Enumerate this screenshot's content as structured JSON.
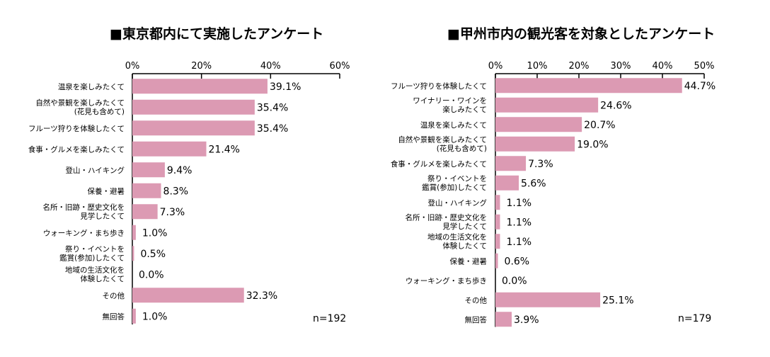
{
  "colors": {
    "bar": "#dc9ab3",
    "axis": "#000000",
    "text": "#000000"
  },
  "chart_data": [
    {
      "type": "bar",
      "orientation": "horizontal",
      "title": "■東京都内にて実施したアンケート",
      "categories": [
        "温泉を楽しみたくて",
        "自然や景観を楽しみたくて\n(花見も含めて)",
        "フルーツ狩りを体験したくて",
        "食事・グルメを楽しみたくて",
        "登山・ハイキング",
        "保養・避暑",
        "名所・旧跡・歴史文化を\n見学したくて",
        "ウォーキング・まち歩き",
        "祭り・イベントを\n鑑賞(参加)したくて",
        "地域の生活文化を\n体験したくて",
        "その他",
        "無回答"
      ],
      "values": [
        39.1,
        35.4,
        35.4,
        21.4,
        9.4,
        8.3,
        7.3,
        1.0,
        0.5,
        0.0,
        32.3,
        1.0
      ],
      "value_labels": [
        "39.1%",
        "35.4%",
        "35.4%",
        "21.4%",
        "9.4%",
        "8.3%",
        "7.3%",
        "1.0%",
        "0.5%",
        "0.0%",
        "32.3%",
        "1.0%"
      ],
      "xlim": [
        0,
        60
      ],
      "xticks": [
        "0%",
        "20%",
        "40%",
        "60%"
      ],
      "n_label": "n=192"
    },
    {
      "type": "bar",
      "orientation": "horizontal",
      "title": "■甲州市内の観光客を対象としたアンケート",
      "categories": [
        "フルーツ狩りを体験したくて",
        "ワイナリー・ワインを\n楽しみたくて",
        "温泉を楽しみたくて",
        "自然や景観を楽しみたくて\n(花見も含めて)",
        "食事・グルメを楽しみたくて",
        "祭り・イベントを\n鑑賞(参加)したくて",
        "登山・ハイキング",
        "名所・旧跡・歴史文化を\n見学したくて",
        "地域の生活文化を\n体験したくて",
        "保養・避暑",
        "ウォーキング・まち歩き",
        "その他",
        "無回答"
      ],
      "values": [
        44.7,
        24.6,
        20.7,
        19.0,
        7.3,
        5.6,
        1.1,
        1.1,
        1.1,
        0.6,
        0.0,
        25.1,
        3.9
      ],
      "value_labels": [
        "44.7%",
        "24.6%",
        "20.7%",
        "19.0%",
        "7.3%",
        "5.6%",
        "1.1%",
        "1.1%",
        "1.1%",
        "0.6%",
        "0.0%",
        "25.1%",
        "3.9%"
      ],
      "xlim": [
        0,
        50
      ],
      "xticks": [
        "0%",
        "10%",
        "20%",
        "30%",
        "40%",
        "50%"
      ],
      "n_label": "n=179"
    }
  ]
}
